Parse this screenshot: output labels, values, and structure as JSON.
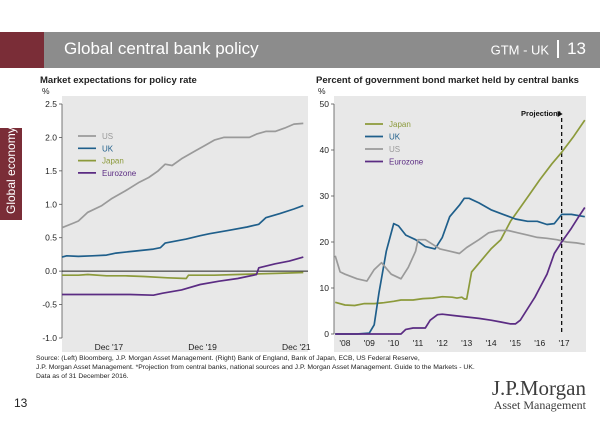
{
  "header": {
    "title": "Global central bank policy",
    "guide": "GTM - UK",
    "page": "13"
  },
  "side_label": "Global economy",
  "footnotes": [
    "Source: (Left) Bloomberg, J.P. Morgan Asset Management. (Right) Bank of England, Bank of Japan, ECB, US Federal Reserve,",
    "J.P. Morgan Asset Management. *Projection from central banks, national sources and J.P. Morgan Asset Management. Guide to the Markets - UK.",
    "Data as of 31 December 2016."
  ],
  "page_number": "13",
  "logo": {
    "name": "J.P.Morgan",
    "sub": "Asset Management"
  },
  "chart_data": [
    {
      "type": "line",
      "title": "Market expectations for policy rate",
      "ylabel": "%",
      "ylim": [
        -1.0,
        2.5
      ],
      "yticks": [
        "2.5",
        "2.0",
        "1.5",
        "1.0",
        "0.5",
        "0.0",
        "-0.5",
        "-1.0"
      ],
      "yticks_values": [
        2.5,
        2.0,
        1.5,
        1.0,
        0.5,
        0.0,
        -0.5,
        -1.0
      ],
      "xticks": [
        "Dec '17",
        "Dec '19",
        "Dec '21"
      ],
      "xticks_values": [
        2017.95,
        2019.95,
        2021.95
      ],
      "xlim": [
        2016.95,
        2022.2
      ],
      "reference_line": 0.0,
      "series": [
        {
          "name": "US",
          "color": "#9a9a9a",
          "points": [
            [
              2016.95,
              0.65
            ],
            [
              2017.2,
              0.72
            ],
            [
              2017.3,
              0.75
            ],
            [
              2017.5,
              0.88
            ],
            [
              2017.8,
              0.98
            ],
            [
              2018.0,
              1.08
            ],
            [
              2018.3,
              1.2
            ],
            [
              2018.6,
              1.33
            ],
            [
              2018.8,
              1.4
            ],
            [
              2019.0,
              1.5
            ],
            [
              2019.15,
              1.6
            ],
            [
              2019.3,
              1.58
            ],
            [
              2019.5,
              1.68
            ],
            [
              2019.8,
              1.8
            ],
            [
              2020.0,
              1.88
            ],
            [
              2020.2,
              1.96
            ],
            [
              2020.4,
              2.0
            ],
            [
              2020.7,
              2.0
            ],
            [
              2020.95,
              2.0
            ],
            [
              2021.1,
              2.05
            ],
            [
              2021.3,
              2.09
            ],
            [
              2021.5,
              2.09
            ],
            [
              2021.7,
              2.14
            ],
            [
              2021.9,
              2.2
            ],
            [
              2022.1,
              2.21
            ]
          ]
        },
        {
          "name": "UK",
          "color": "#1f5f8b",
          "points": [
            [
              2016.95,
              0.21
            ],
            [
              2017.05,
              0.23
            ],
            [
              2017.3,
              0.22
            ],
            [
              2017.6,
              0.23
            ],
            [
              2017.9,
              0.24
            ],
            [
              2018.1,
              0.27
            ],
            [
              2018.5,
              0.3
            ],
            [
              2018.9,
              0.33
            ],
            [
              2019.05,
              0.35
            ],
            [
              2019.15,
              0.42
            ],
            [
              2019.6,
              0.48
            ],
            [
              2019.9,
              0.53
            ],
            [
              2020.1,
              0.56
            ],
            [
              2020.5,
              0.61
            ],
            [
              2020.9,
              0.66
            ],
            [
              2021.15,
              0.7
            ],
            [
              2021.3,
              0.8
            ],
            [
              2021.6,
              0.86
            ],
            [
              2021.9,
              0.93
            ],
            [
              2022.1,
              0.98
            ]
          ]
        },
        {
          "name": "Japan",
          "color": "#8c9a3b",
          "points": [
            [
              2016.95,
              -0.06
            ],
            [
              2017.3,
              -0.06
            ],
            [
              2017.5,
              -0.05
            ],
            [
              2017.9,
              -0.07
            ],
            [
              2018.3,
              -0.07
            ],
            [
              2018.7,
              -0.08
            ],
            [
              2019.2,
              -0.1
            ],
            [
              2019.6,
              -0.11
            ],
            [
              2019.65,
              -0.06
            ],
            [
              2020.2,
              -0.06
            ],
            [
              2020.7,
              -0.05
            ],
            [
              2021.2,
              -0.04
            ],
            [
              2021.7,
              -0.03
            ],
            [
              2022.1,
              -0.02
            ]
          ]
        },
        {
          "name": "Eurozone",
          "color": "#5b2c83",
          "points": [
            [
              2016.95,
              -0.35
            ],
            [
              2017.4,
              -0.35
            ],
            [
              2017.9,
              -0.35
            ],
            [
              2018.4,
              -0.35
            ],
            [
              2018.9,
              -0.36
            ],
            [
              2019.1,
              -0.33
            ],
            [
              2019.5,
              -0.28
            ],
            [
              2019.9,
              -0.2
            ],
            [
              2020.3,
              -0.15
            ],
            [
              2020.7,
              -0.11
            ],
            [
              2021.1,
              -0.05
            ],
            [
              2021.15,
              0.05
            ],
            [
              2021.5,
              0.11
            ],
            [
              2021.8,
              0.15
            ],
            [
              2022.1,
              0.21
            ]
          ]
        }
      ]
    },
    {
      "type": "line",
      "title": "Percent of government bond market held by central banks",
      "ylabel": "%",
      "ylim": [
        0,
        50
      ],
      "yticks": [
        "50",
        "40",
        "30",
        "20",
        "10",
        "0"
      ],
      "yticks_values": [
        50,
        40,
        30,
        20,
        10,
        0
      ],
      "xticks": [
        "'08",
        "'09",
        "'10",
        "'11",
        "'12",
        "'13",
        "'14",
        "'15",
        "'16",
        "'17"
      ],
      "xticks_values": [
        2008,
        2009,
        2010,
        2011,
        2012,
        2013,
        2014,
        2015,
        2016,
        2017
      ],
      "xlim": [
        2007.55,
        2017.9
      ],
      "annotation": "Projection*",
      "projection_start": 2016.9,
      "series": [
        {
          "name": "Japan",
          "color": "#8c9a3b",
          "points": [
            [
              2007.6,
              6.9
            ],
            [
              2008.0,
              6.3
            ],
            [
              2008.4,
              6.2
            ],
            [
              2008.8,
              6.6
            ],
            [
              2009.2,
              6.6
            ],
            [
              2009.6,
              6.8
            ],
            [
              2010.0,
              7.1
            ],
            [
              2010.3,
              7.4
            ],
            [
              2010.8,
              7.4
            ],
            [
              2011.2,
              7.7
            ],
            [
              2011.6,
              7.8
            ],
            [
              2012.0,
              8.1
            ],
            [
              2012.4,
              8.0
            ],
            [
              2012.6,
              7.8
            ],
            [
              2012.8,
              8.0
            ],
            [
              2012.9,
              7.6
            ],
            [
              2013.0,
              7.6
            ],
            [
              2013.2,
              13.5
            ],
            [
              2013.6,
              16.0
            ],
            [
              2014.0,
              18.5
            ],
            [
              2014.4,
              20.5
            ],
            [
              2014.8,
              24.5
            ],
            [
              2015.2,
              27.5
            ],
            [
              2015.6,
              30.5
            ],
            [
              2016.0,
              33.5
            ],
            [
              2016.5,
              37.0
            ],
            [
              2016.9,
              39.5
            ],
            [
              2017.4,
              43.0
            ],
            [
              2017.85,
              46.5
            ]
          ]
        },
        {
          "name": "UK",
          "color": "#1f5f8b",
          "points": [
            [
              2007.6,
              0.0
            ],
            [
              2008.0,
              0.0
            ],
            [
              2008.5,
              0.0
            ],
            [
              2009.0,
              0.2
            ],
            [
              2009.2,
              2.0
            ],
            [
              2009.4,
              9.0
            ],
            [
              2009.7,
              18.0
            ],
            [
              2010.0,
              24.0
            ],
            [
              2010.2,
              23.5
            ],
            [
              2010.5,
              21.5
            ],
            [
              2010.9,
              20.5
            ],
            [
              2011.3,
              19.0
            ],
            [
              2011.7,
              18.5
            ],
            [
              2012.0,
              21.0
            ],
            [
              2012.3,
              25.5
            ],
            [
              2012.7,
              28.0
            ],
            [
              2012.9,
              29.5
            ],
            [
              2013.1,
              29.5
            ],
            [
              2013.5,
              28.5
            ],
            [
              2014.0,
              27.0
            ],
            [
              2014.5,
              26.0
            ],
            [
              2015.0,
              25.0
            ],
            [
              2015.5,
              24.5
            ],
            [
              2015.9,
              24.5
            ],
            [
              2016.3,
              23.8
            ],
            [
              2016.6,
              24.0
            ],
            [
              2016.9,
              26.0
            ],
            [
              2017.3,
              26.0
            ],
            [
              2017.85,
              25.5
            ]
          ]
        },
        {
          "name": "US",
          "color": "#9a9a9a",
          "points": [
            [
              2007.6,
              17.0
            ],
            [
              2007.8,
              13.5
            ],
            [
              2008.0,
              13.0
            ],
            [
              2008.5,
              12.0
            ],
            [
              2008.9,
              11.5
            ],
            [
              2009.2,
              14.0
            ],
            [
              2009.5,
              15.5
            ],
            [
              2009.9,
              13.0
            ],
            [
              2010.3,
              12.0
            ],
            [
              2010.6,
              14.5
            ],
            [
              2010.9,
              18.0
            ],
            [
              2011.0,
              20.5
            ],
            [
              2011.3,
              20.5
            ],
            [
              2011.6,
              19.5
            ],
            [
              2011.9,
              18.5
            ],
            [
              2012.3,
              18.0
            ],
            [
              2012.7,
              17.5
            ],
            [
              2013.0,
              18.8
            ],
            [
              2013.5,
              20.5
            ],
            [
              2013.9,
              22.0
            ],
            [
              2014.3,
              22.5
            ],
            [
              2014.7,
              22.5
            ],
            [
              2015.1,
              22.0
            ],
            [
              2015.5,
              21.5
            ],
            [
              2015.9,
              21.0
            ],
            [
              2016.3,
              20.8
            ],
            [
              2016.7,
              20.5
            ],
            [
              2017.1,
              20.0
            ],
            [
              2017.5,
              19.8
            ],
            [
              2017.85,
              19.5
            ]
          ]
        },
        {
          "name": "Eurozone",
          "color": "#5b2c83",
          "points": [
            [
              2007.6,
              0.0
            ],
            [
              2008.0,
              0.0
            ],
            [
              2008.5,
              0.0
            ],
            [
              2009.0,
              0.0
            ],
            [
              2009.5,
              0.0
            ],
            [
              2010.0,
              0.0
            ],
            [
              2010.3,
              0.0
            ],
            [
              2010.5,
              1.0
            ],
            [
              2010.8,
              1.3
            ],
            [
              2011.0,
              1.3
            ],
            [
              2011.3,
              1.3
            ],
            [
              2011.5,
              3.0
            ],
            [
              2011.8,
              4.2
            ],
            [
              2012.0,
              4.3
            ],
            [
              2012.5,
              4.0
            ],
            [
              2013.0,
              3.7
            ],
            [
              2013.5,
              3.4
            ],
            [
              2014.0,
              3.0
            ],
            [
              2014.4,
              2.6
            ],
            [
              2014.8,
              2.2
            ],
            [
              2015.0,
              2.2
            ],
            [
              2015.2,
              3.0
            ],
            [
              2015.5,
              5.5
            ],
            [
              2015.8,
              8.0
            ],
            [
              2016.0,
              10.0
            ],
            [
              2016.3,
              13.0
            ],
            [
              2016.6,
              17.5
            ],
            [
              2016.9,
              20.0
            ],
            [
              2017.3,
              23.0
            ],
            [
              2017.6,
              25.5
            ],
            [
              2017.85,
              27.5
            ]
          ]
        }
      ]
    }
  ]
}
